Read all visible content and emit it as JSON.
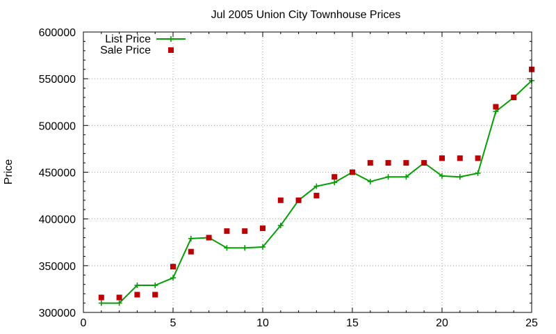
{
  "chart_data": {
    "type": "line",
    "title": "Jul 2005 Union City Townhouse Prices",
    "xlabel": "",
    "ylabel": "Price",
    "xlim": [
      0,
      25
    ],
    "ylim": [
      300000,
      600000
    ],
    "x_ticks": [
      0,
      5,
      10,
      15,
      20,
      25
    ],
    "y_ticks": [
      300000,
      350000,
      400000,
      450000,
      500000,
      550000,
      600000
    ],
    "grid": true,
    "legend_position": "top-left",
    "x": [
      1,
      2,
      3,
      4,
      5,
      6,
      7,
      8,
      9,
      10,
      11,
      12,
      13,
      14,
      15,
      16,
      17,
      18,
      19,
      20,
      21,
      22,
      23,
      24,
      25
    ],
    "series": [
      {
        "name": "List Price",
        "style": "line-with-plus-markers",
        "color": "#00a000",
        "values": [
          310000,
          310000,
          329000,
          329000,
          337000,
          379000,
          380000,
          369000,
          369000,
          370000,
          393000,
          420000,
          435000,
          439000,
          450000,
          440000,
          445000,
          445000,
          460000,
          446000,
          445000,
          449000,
          515000,
          530000,
          548000
        ]
      },
      {
        "name": "Sale Price",
        "style": "square-markers",
        "color": "#c00000",
        "values": [
          316000,
          316000,
          319000,
          319000,
          349000,
          365000,
          380000,
          387000,
          387000,
          390000,
          420000,
          420000,
          425000,
          445000,
          450000,
          460000,
          460000,
          460000,
          460000,
          465000,
          465000,
          465000,
          520000,
          530000,
          560000
        ]
      }
    ]
  }
}
